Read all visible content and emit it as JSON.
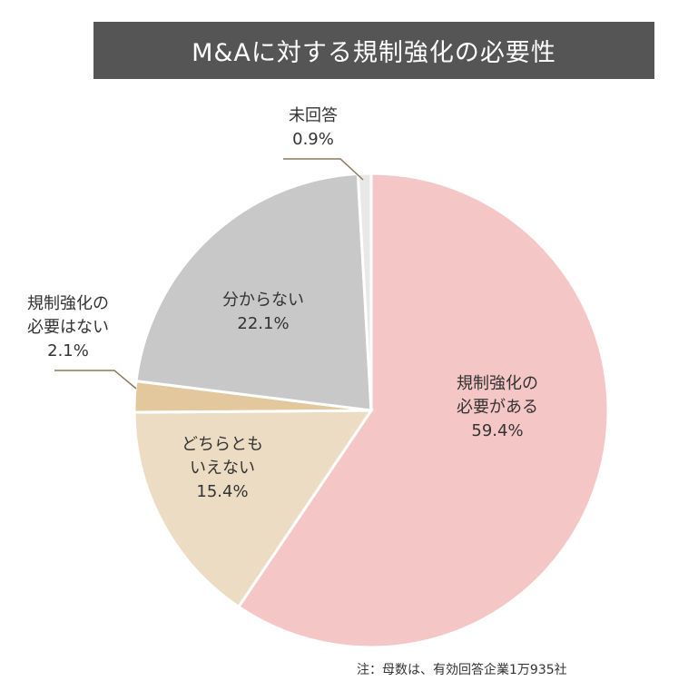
{
  "title": "M&Aに対する規制強化の必要性",
  "note": "注：母数は、有効回答企業1万935社",
  "chart_data": {
    "type": "pie",
    "title": "M&Aに対する規制強化の必要性",
    "start": "12 o'clock, clockwise",
    "slices": [
      {
        "label_lines": [
          "規制強化の",
          "必要がある"
        ],
        "value": 59.4,
        "value_text": "59.4%",
        "color": "#f5c6c6"
      },
      {
        "label_lines": [
          "どちらとも",
          "いえない"
        ],
        "value": 15.4,
        "value_text": "15.4%",
        "color": "#ecdcc3"
      },
      {
        "label_lines": [
          "規制強化の",
          "必要はない"
        ],
        "value": 2.1,
        "value_text": "2.1%",
        "color": "#e2c89c"
      },
      {
        "label_lines": [
          "分からない"
        ],
        "value": 22.1,
        "value_text": "22.1%",
        "color": "#c8c8c8"
      },
      {
        "label_lines": [
          "未回答"
        ],
        "value": 0.9,
        "value_text": "0.9%",
        "color": "#e8e8e8"
      }
    ]
  }
}
